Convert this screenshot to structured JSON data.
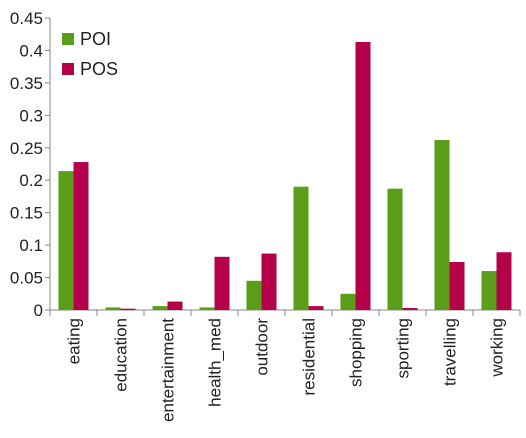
{
  "chart_data": {
    "type": "bar",
    "title": "",
    "xlabel": "",
    "ylabel": "",
    "ylim": [
      0,
      0.45
    ],
    "yticks": [
      0,
      0.05,
      0.1,
      0.15,
      0.2,
      0.25,
      0.3,
      0.35,
      0.4,
      0.45
    ],
    "ytick_labels": [
      "0",
      "0.05",
      "0.1",
      "0.15",
      "0.2",
      "0.25",
      "0.3",
      "0.35",
      "0.4",
      "0.45"
    ],
    "grid": false,
    "legend_position": "top-left",
    "categories": [
      "eating",
      "education",
      "entertainment",
      "health_med",
      "outdoor",
      "residential",
      "shopping",
      "sporting",
      "travelling",
      "working"
    ],
    "series": [
      {
        "name": "POI",
        "color": "#5a9e1a",
        "values": [
          0.214,
          0.004,
          0.006,
          0.004,
          0.045,
          0.19,
          0.025,
          0.187,
          0.262,
          0.06
        ]
      },
      {
        "name": "POS",
        "color": "#b5004a",
        "values": [
          0.228,
          0.002,
          0.013,
          0.082,
          0.087,
          0.006,
          0.413,
          0.003,
          0.074,
          0.089
        ]
      }
    ]
  }
}
